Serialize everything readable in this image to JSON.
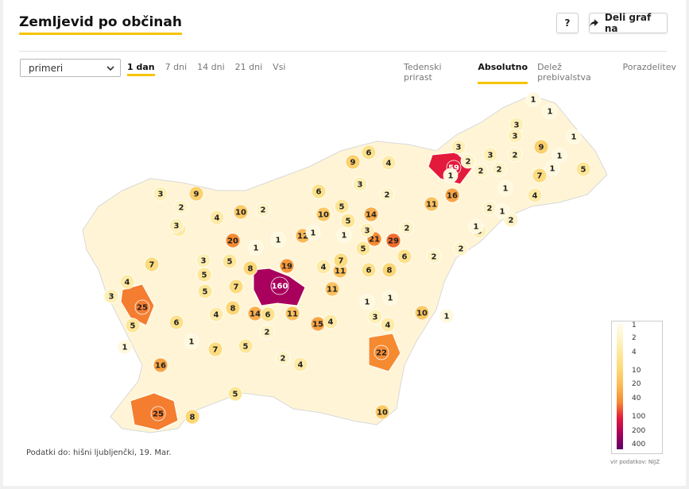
{
  "header": {
    "title": "Zemljevid po občinah",
    "help_label": "?",
    "share_label": "Deli graf na"
  },
  "controls": {
    "select_value": "primeri",
    "time_tabs": [
      "1 dan",
      "7 dni",
      "14 dni",
      "21 dni",
      "Vsi"
    ],
    "active_time_tab": "1 dan",
    "mode_tabs": [
      "Tedenski prirast",
      "Absolutno",
      "Delež prebivalstva",
      "Porazdelitev"
    ],
    "active_mode_tab": "Absolutno"
  },
  "map": {
    "region_labels": [
      {
        "value": "160",
        "color": "#a8005c"
      },
      {
        "value": "59",
        "color": "#e41a3c"
      },
      {
        "value": "29",
        "color": "#f26b2d"
      },
      {
        "value": "25",
        "color": "#f47d2f"
      },
      {
        "value": "25",
        "color": "#f47d2f"
      },
      {
        "value": "22",
        "color": "#f68a31"
      },
      {
        "value": "21",
        "color": "#f68a31"
      },
      {
        "value": "20",
        "color": "#f68a31"
      },
      {
        "value": "19",
        "color": "#f7983a"
      },
      {
        "value": "16",
        "color": "#f9a444"
      },
      {
        "value": "16",
        "color": "#f9a444"
      },
      {
        "value": "15",
        "color": "#f9a444"
      },
      {
        "value": "14",
        "color": "#faae4c"
      },
      {
        "value": "14",
        "color": "#faae4c"
      },
      {
        "value": "12",
        "color": "#fbb855"
      },
      {
        "value": "11",
        "color": "#fbc15e"
      },
      {
        "value": "11",
        "color": "#fbc15e"
      },
      {
        "value": "11",
        "color": "#fbc15e"
      },
      {
        "value": "11",
        "color": "#fbc15e"
      },
      {
        "value": "10",
        "color": "#fcc965"
      },
      {
        "value": "10",
        "color": "#fcc965"
      },
      {
        "value": "10",
        "color": "#fcc965"
      },
      {
        "value": "10",
        "color": "#fcc965"
      },
      {
        "value": "9",
        "color": "#fcd06d"
      },
      {
        "value": "9",
        "color": "#fcd06d"
      },
      {
        "value": "9",
        "color": "#fcd06d"
      },
      {
        "value": "8",
        "color": "#fdd675"
      },
      {
        "value": "8",
        "color": "#fdd675"
      },
      {
        "value": "8",
        "color": "#fdd675"
      },
      {
        "value": "8",
        "color": "#fdd675"
      },
      {
        "value": "7",
        "color": "#fddc7f"
      },
      {
        "value": "7",
        "color": "#fddc7f"
      },
      {
        "value": "7",
        "color": "#fddc7f"
      },
      {
        "value": "7",
        "color": "#fddc7f"
      },
      {
        "value": "7",
        "color": "#fddc7f"
      },
      {
        "value": "6",
        "color": "#fde18a"
      },
      {
        "value": "6",
        "color": "#fde18a"
      },
      {
        "value": "6",
        "color": "#fde18a"
      },
      {
        "value": "6",
        "color": "#fde18a"
      },
      {
        "value": "6",
        "color": "#fde18a"
      },
      {
        "value": "6",
        "color": "#fde18a"
      },
      {
        "value": "5",
        "color": "#fee697"
      },
      {
        "value": "5",
        "color": "#fee697"
      },
      {
        "value": "5",
        "color": "#fee697"
      },
      {
        "value": "5",
        "color": "#fee697"
      },
      {
        "value": "5",
        "color": "#fee697"
      },
      {
        "value": "5",
        "color": "#fee697"
      },
      {
        "value": "5",
        "color": "#fee697"
      },
      {
        "value": "5",
        "color": "#fee697"
      },
      {
        "value": "5",
        "color": "#fee697"
      },
      {
        "value": "5",
        "color": "#fee697"
      },
      {
        "value": "4",
        "color": "#feeaa5"
      },
      {
        "value": "4",
        "color": "#feeaa5"
      },
      {
        "value": "4",
        "color": "#feeaa5"
      },
      {
        "value": "4",
        "color": "#feeaa5"
      },
      {
        "value": "4",
        "color": "#feeaa5"
      },
      {
        "value": "4",
        "color": "#feeaa5"
      },
      {
        "value": "4",
        "color": "#feeaa5"
      },
      {
        "value": "4",
        "color": "#feeaa5"
      },
      {
        "value": "4",
        "color": "#feeaa5"
      },
      {
        "value": "4",
        "color": "#feeaa5"
      },
      {
        "value": "3",
        "color": "#feefb6"
      },
      {
        "value": "3",
        "color": "#feefb6"
      },
      {
        "value": "3",
        "color": "#feefb6"
      },
      {
        "value": "3",
        "color": "#feefb6"
      },
      {
        "value": "3",
        "color": "#feefb6"
      },
      {
        "value": "3",
        "color": "#feefb6"
      },
      {
        "value": "3",
        "color": "#feefb6"
      },
      {
        "value": "3",
        "color": "#feefb6"
      },
      {
        "value": "3",
        "color": "#feefb6"
      },
      {
        "value": "3",
        "color": "#feefb6"
      },
      {
        "value": "3",
        "color": "#feefb6"
      },
      {
        "value": "3",
        "color": "#feefb6"
      },
      {
        "value": "2",
        "color": "#fef3c8"
      },
      {
        "value": "2",
        "color": "#fef3c8"
      },
      {
        "value": "2",
        "color": "#fef3c8"
      },
      {
        "value": "2",
        "color": "#fef3c8"
      },
      {
        "value": "2",
        "color": "#fef3c8"
      },
      {
        "value": "2",
        "color": "#fef3c8"
      },
      {
        "value": "2",
        "color": "#fef3c8"
      },
      {
        "value": "2",
        "color": "#fef3c8"
      },
      {
        "value": "2",
        "color": "#fef3c8"
      },
      {
        "value": "2",
        "color": "#fef3c8"
      },
      {
        "value": "2",
        "color": "#fef3c8"
      },
      {
        "value": "2",
        "color": "#fef3c8"
      },
      {
        "value": "2",
        "color": "#fef3c8"
      },
      {
        "value": "2",
        "color": "#fef3c8"
      },
      {
        "value": "1",
        "color": "#fff8dd"
      },
      {
        "value": "1",
        "color": "#fff8dd"
      },
      {
        "value": "1",
        "color": "#fff8dd"
      },
      {
        "value": "1",
        "color": "#fff8dd"
      },
      {
        "value": "1",
        "color": "#fff8dd"
      },
      {
        "value": "1",
        "color": "#fff8dd"
      },
      {
        "value": "1",
        "color": "#fff8dd"
      },
      {
        "value": "1",
        "color": "#fff8dd"
      },
      {
        "value": "1",
        "color": "#fff8dd"
      },
      {
        "value": "1",
        "color": "#fff8dd"
      },
      {
        "value": "1",
        "color": "#fff8dd"
      },
      {
        "value": "1",
        "color": "#fff8dd"
      },
      {
        "value": "1",
        "color": "#fff8dd"
      },
      {
        "value": "1",
        "color": "#fff8dd"
      },
      {
        "value": "1",
        "color": "#fff8dd"
      },
      {
        "value": "1",
        "color": "#fff8dd"
      },
      {
        "value": "1",
        "color": "#fff8dd"
      },
      {
        "value": "1",
        "color": "#fff8dd"
      },
      {
        "value": "1",
        "color": "#fff8dd"
      },
      {
        "value": "1",
        "color": "#fff8dd"
      }
    ]
  },
  "legend": {
    "ticks": [
      "1",
      "2",
      "4",
      "10",
      "20",
      "40",
      "100",
      "200",
      "400"
    ],
    "colors": [
      "#fffbea",
      "#fef3c8",
      "#fee697",
      "#fdd675",
      "#fbb855",
      "#f68a31",
      "#e41a3c",
      "#a8005c",
      "#5c0068"
    ]
  },
  "footer": {
    "data_note": "Podatki do: hišni ljubljenčki, 19. Mar.",
    "source": "vir podatkov: NIJZ"
  }
}
